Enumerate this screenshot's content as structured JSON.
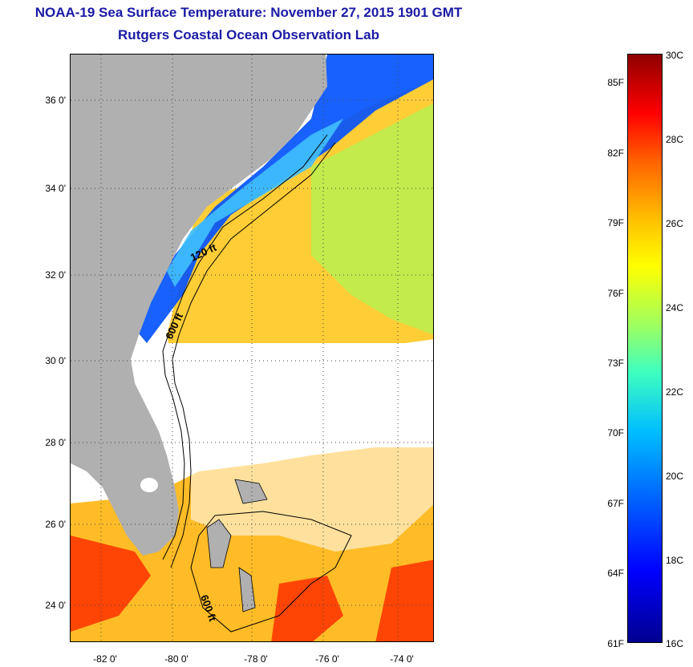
{
  "header": {
    "title": "NOAA-19 Sea Surface Temperature:  November 27, 2015 1901 GMT",
    "subtitle": "Rutgers Coastal Ocean Observation Lab"
  },
  "map": {
    "latitude_labels": [
      "36 0'",
      "34 0'",
      "32 0'",
      "30 0'",
      "28 0'",
      "26 0'",
      "24 0'"
    ],
    "longitude_labels": [
      "-82 0'",
      "-80 0'",
      "-78 0'",
      "-76 0'",
      "-74 0'"
    ],
    "contour_labels": [
      "120 ft",
      "600 ft",
      "600 ft"
    ],
    "land_color": "#b0b0b0",
    "background_color": "#ffffff"
  },
  "colorbar": {
    "fahrenheit_labels": [
      "85F",
      "82F",
      "79F",
      "76F",
      "73F",
      "70F",
      "67F",
      "64F",
      "61F"
    ],
    "celsius_labels": [
      "30C",
      "28C",
      "26C",
      "24C",
      "22C",
      "20C",
      "18C",
      "16C"
    ],
    "min_c": 16,
    "max_c": 30,
    "colors": [
      "#00008f",
      "#0000ff",
      "#00bfff",
      "#9fff5f",
      "#ffff00",
      "#ff6000",
      "#ff0000",
      "#8f0000"
    ]
  }
}
